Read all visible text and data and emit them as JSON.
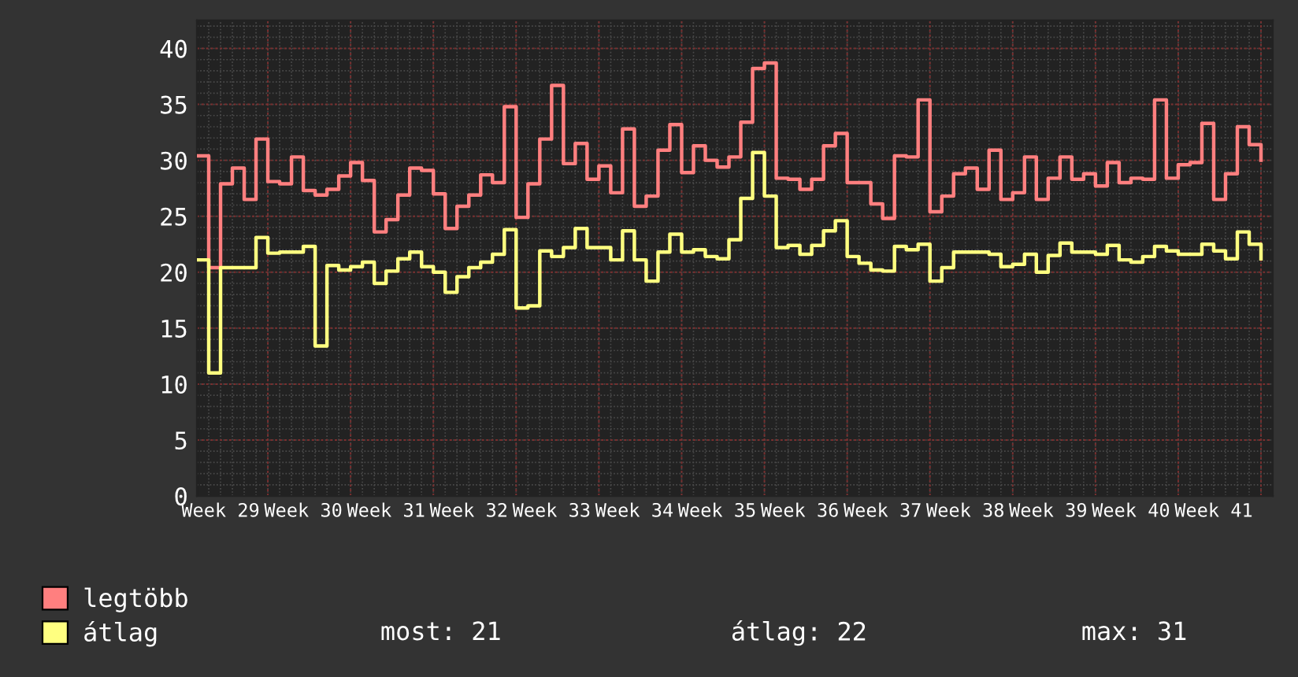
{
  "chart_data": {
    "type": "step",
    "categories": [
      null,
      null,
      "Week 29",
      null,
      null,
      null,
      null,
      null,
      null,
      "Week 30",
      null,
      null,
      null,
      null,
      null,
      null,
      "Week 31",
      null,
      null,
      null,
      null,
      null,
      null,
      "Week 32",
      null,
      null,
      null,
      null,
      null,
      null,
      "Week 33",
      null,
      null,
      null,
      null,
      null,
      null,
      "Week 34",
      null,
      null,
      null,
      null,
      null,
      null,
      "Week 35",
      null,
      null,
      null,
      null,
      null,
      null,
      "Week 36",
      null,
      null,
      null,
      null,
      null,
      null,
      "Week 37",
      null,
      null,
      null,
      null,
      null,
      null,
      "Week 38",
      null,
      null,
      null,
      null,
      null,
      null,
      "Week 39",
      null,
      null,
      null,
      null,
      null,
      null,
      "Week 40",
      null,
      null,
      null,
      null,
      null,
      null,
      "Week 41",
      null,
      null,
      null,
      null
    ],
    "series": [
      {
        "name": "legtöbb",
        "color": "#ff7f7f",
        "values": [
          30.4,
          20.4,
          27.9,
          29.3,
          26.5,
          31.9,
          28.1,
          27.9,
          30.3,
          27.3,
          26.9,
          27.4,
          28.6,
          29.8,
          28.2,
          23.6,
          24.7,
          26.9,
          29.3,
          29.1,
          27.0,
          23.9,
          25.9,
          26.9,
          28.7,
          28.0,
          34.8,
          24.9,
          27.9,
          31.9,
          36.7,
          29.7,
          31.5,
          28.3,
          29.5,
          27.1,
          32.8,
          25.9,
          26.8,
          30.9,
          33.2,
          28.9,
          31.3,
          30.0,
          29.4,
          30.3,
          33.4,
          38.2,
          38.7,
          28.4,
          28.3,
          27.4,
          28.3,
          31.3,
          32.4,
          28.0,
          28.0,
          26.1,
          24.8,
          30.4,
          30.3,
          35.4,
          25.4,
          26.8,
          28.8,
          29.3,
          27.4,
          30.9,
          26.5,
          27.1,
          30.3,
          26.5,
          28.4,
          30.3,
          28.3,
          28.8,
          27.7,
          29.8,
          28.0,
          28.4,
          28.3,
          35.4,
          28.4,
          29.6,
          29.8,
          33.3,
          26.5,
          28.8,
          33.0,
          31.4,
          30.0
        ]
      },
      {
        "name": "átlag",
        "color": "#ffff80",
        "values": [
          21.1,
          11.0,
          20.4,
          20.4,
          20.4,
          23.1,
          21.7,
          21.8,
          21.8,
          22.3,
          13.4,
          20.6,
          20.2,
          20.5,
          20.9,
          19.0,
          20.1,
          21.2,
          21.8,
          20.5,
          20.0,
          18.2,
          19.6,
          20.4,
          20.9,
          21.6,
          23.8,
          16.8,
          17.0,
          21.9,
          21.4,
          22.2,
          23.9,
          22.2,
          22.2,
          21.1,
          23.7,
          21.1,
          19.2,
          21.8,
          23.4,
          21.8,
          22.0,
          21.4,
          21.2,
          22.9,
          26.6,
          30.7,
          26.8,
          22.2,
          22.4,
          21.6,
          22.4,
          23.7,
          24.6,
          21.4,
          20.8,
          20.2,
          20.1,
          22.3,
          22.0,
          22.5,
          19.2,
          20.4,
          21.8,
          21.8,
          21.8,
          21.6,
          20.5,
          20.7,
          21.6,
          20.0,
          21.5,
          22.6,
          21.8,
          21.8,
          21.6,
          22.4,
          21.1,
          20.9,
          21.4,
          22.3,
          21.9,
          21.6,
          21.6,
          22.5,
          21.9,
          21.2,
          23.6,
          22.5,
          21.2
        ]
      }
    ],
    "ylim": [
      0,
      42.5
    ],
    "yticks": [
      0,
      5,
      10,
      15,
      20,
      25,
      30,
      35,
      40
    ],
    "grid": true,
    "legend": "bottom left",
    "annotations": [
      "most: 21",
      "átlag: 22",
      "max: 31"
    ]
  }
}
